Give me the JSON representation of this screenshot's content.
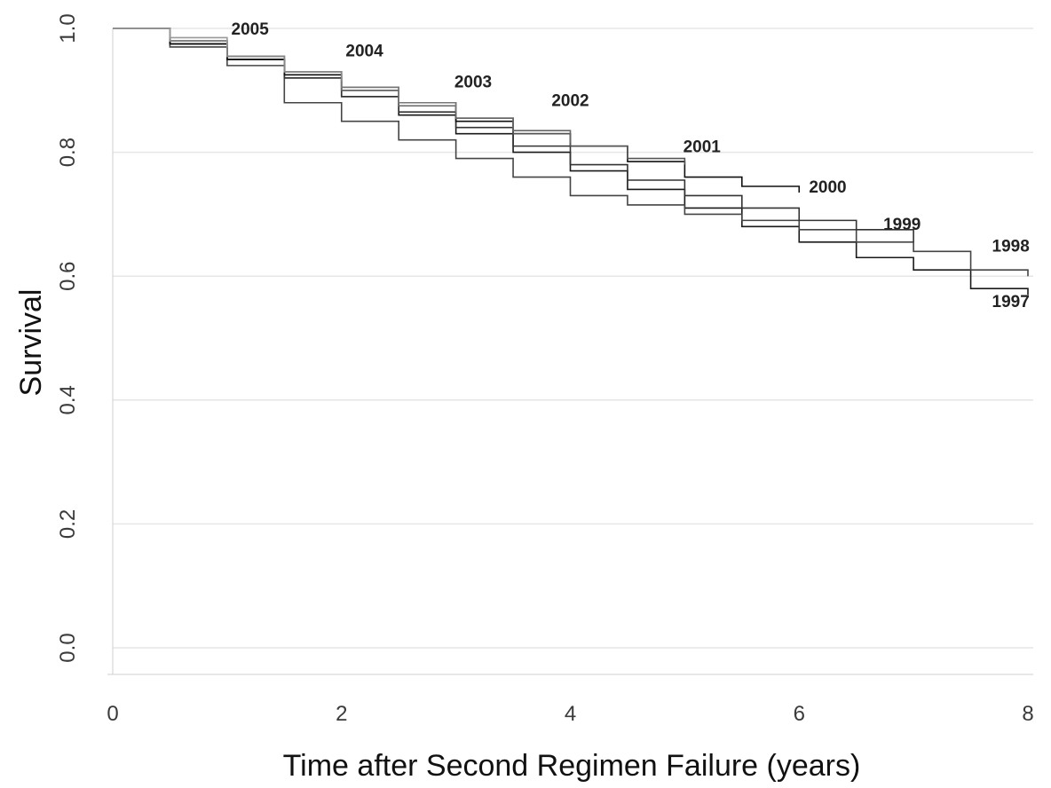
{
  "chart_data": {
    "type": "line",
    "xlabel": "Time after Second Regimen Failure (years)",
    "ylabel": "Survival",
    "xlim": [
      0,
      8
    ],
    "ylim": [
      0,
      1
    ],
    "xticks": [
      "0",
      "2",
      "4",
      "6",
      "8"
    ],
    "yticks": [
      "0.0",
      "0.2",
      "0.4",
      "0.6",
      "0.8",
      "1.0"
    ],
    "grid": "horizontal",
    "legend": "none",
    "series": [
      {
        "name": "1997",
        "color": "#1a1a1a",
        "x": [
          0,
          0.5,
          1,
          1.5,
          2,
          2.5,
          3,
          3.5,
          4,
          4.5,
          5,
          5.5,
          6,
          6.5,
          7,
          7.5,
          8
        ],
        "y": [
          1.0,
          0.975,
          0.95,
          0.92,
          0.89,
          0.86,
          0.83,
          0.8,
          0.77,
          0.74,
          0.71,
          0.68,
          0.655,
          0.63,
          0.61,
          0.58,
          0.57
        ]
      },
      {
        "name": "1998",
        "color": "#444444",
        "x": [
          0,
          0.5,
          1,
          1.5,
          2,
          2.5,
          3,
          3.5,
          4,
          4.5,
          5,
          5.5,
          6,
          6.5,
          7,
          7.5,
          8
        ],
        "y": [
          1.0,
          0.97,
          0.94,
          0.88,
          0.85,
          0.82,
          0.79,
          0.76,
          0.73,
          0.715,
          0.7,
          0.69,
          0.675,
          0.655,
          0.64,
          0.61,
          0.6
        ]
      },
      {
        "name": "1999",
        "color": "#333333",
        "x": [
          0,
          0.5,
          1,
          1.5,
          2,
          2.5,
          3,
          3.5,
          4,
          4.5,
          5,
          5.5,
          6,
          6.5,
          7
        ],
        "y": [
          1.0,
          0.975,
          0.95,
          0.92,
          0.89,
          0.865,
          0.84,
          0.81,
          0.78,
          0.755,
          0.73,
          0.71,
          0.69,
          0.675,
          0.655
        ]
      },
      {
        "name": "2000",
        "color": "#111111",
        "x": [
          0,
          0.5,
          1,
          1.5,
          2,
          2.5,
          3,
          3.5,
          4,
          4.5,
          5,
          5.5,
          6
        ],
        "y": [
          1.0,
          0.975,
          0.95,
          0.925,
          0.9,
          0.875,
          0.85,
          0.83,
          0.81,
          0.785,
          0.76,
          0.745,
          0.735
        ]
      },
      {
        "name": "2001",
        "color": "#555555",
        "x": [
          0,
          0.5,
          1,
          1.5,
          2,
          2.5,
          3,
          3.5,
          4,
          4.5,
          5
        ],
        "y": [
          1.0,
          0.98,
          0.955,
          0.93,
          0.905,
          0.88,
          0.855,
          0.83,
          0.81,
          0.79,
          0.78
        ]
      },
      {
        "name": "2002",
        "color": "#666666",
        "x": [
          0,
          0.5,
          1,
          1.5,
          2,
          2.5,
          3,
          3.5,
          4
        ],
        "y": [
          1.0,
          0.98,
          0.955,
          0.93,
          0.9,
          0.875,
          0.855,
          0.835,
          0.815
        ]
      },
      {
        "name": "2003",
        "color": "#777777",
        "x": [
          0,
          0.5,
          1,
          1.5,
          2,
          2.5,
          3
        ],
        "y": [
          1.0,
          0.98,
          0.955,
          0.93,
          0.905,
          0.88,
          0.865
        ]
      },
      {
        "name": "2004",
        "color": "#888888",
        "x": [
          0,
          0.5,
          1,
          1.5,
          2
        ],
        "y": [
          1.0,
          0.98,
          0.955,
          0.93,
          0.915
        ]
      },
      {
        "name": "2005",
        "color": "#999999",
        "x": [
          0,
          0.5,
          1
        ],
        "y": [
          1.0,
          0.985,
          0.97
        ]
      }
    ],
    "annotations": [
      {
        "text": "2005",
        "x": 1.2,
        "y": 0.99
      },
      {
        "text": "2004",
        "x": 2.2,
        "y": 0.955
      },
      {
        "text": "2003",
        "x": 3.15,
        "y": 0.905
      },
      {
        "text": "2002",
        "x": 4.0,
        "y": 0.875
      },
      {
        "text": "2001",
        "x": 5.15,
        "y": 0.8
      },
      {
        "text": "2000",
        "x": 6.25,
        "y": 0.735
      },
      {
        "text": "1999",
        "x": 6.9,
        "y": 0.675
      },
      {
        "text": "1998",
        "x": 7.85,
        "y": 0.64
      },
      {
        "text": "1997",
        "x": 7.85,
        "y": 0.55
      }
    ]
  }
}
